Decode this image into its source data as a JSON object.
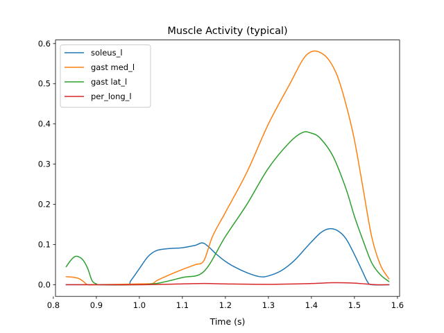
{
  "chart_data": {
    "type": "line",
    "title": "Muscle Activity (typical)",
    "xlabel": "Time (s)",
    "ylabel": "",
    "xlim": [
      0.805,
      1.605
    ],
    "ylim": [
      -0.029,
      0.609
    ],
    "xticks": [
      0.8,
      0.9,
      1.0,
      1.1,
      1.2,
      1.3,
      1.4,
      1.5,
      1.6
    ],
    "xtick_labels": [
      "0.8",
      "0.9",
      "1.0",
      "1.1",
      "1.2",
      "1.3",
      "1.4",
      "1.5",
      "1.6"
    ],
    "yticks": [
      0.0,
      0.1,
      0.2,
      0.3,
      0.4,
      0.5,
      0.6
    ],
    "ytick_labels": [
      "0.0",
      "0.1",
      "0.2",
      "0.3",
      "0.4",
      "0.5",
      "0.6"
    ],
    "grid": false,
    "legend_position": "upper-left",
    "series": [
      {
        "name": "soleus_l",
        "color": "#1f77b4",
        "x": [
          0.83,
          0.9,
          0.97,
          0.98,
          1.0,
          1.02,
          1.04,
          1.07,
          1.1,
          1.13,
          1.15,
          1.18,
          1.2,
          1.22,
          1.25,
          1.28,
          1.3,
          1.33,
          1.36,
          1.39,
          1.42,
          1.44,
          1.46,
          1.48,
          1.5,
          1.52,
          1.53,
          1.54,
          1.58
        ],
        "y": [
          0.0,
          0.0,
          0.0,
          0.01,
          0.04,
          0.07,
          0.085,
          0.09,
          0.092,
          0.098,
          0.103,
          0.075,
          0.058,
          0.045,
          0.03,
          0.02,
          0.022,
          0.035,
          0.06,
          0.095,
          0.128,
          0.139,
          0.135,
          0.115,
          0.075,
          0.03,
          0.008,
          0.0,
          0.0
        ]
      },
      {
        "name": "gast med_l",
        "color": "#ff7f0e",
        "x": [
          0.83,
          0.85,
          0.86,
          0.87,
          0.88,
          0.9,
          1.0,
          1.03,
          1.04,
          1.06,
          1.1,
          1.13,
          1.15,
          1.17,
          1.2,
          1.25,
          1.3,
          1.35,
          1.38,
          1.4,
          1.42,
          1.44,
          1.46,
          1.48,
          1.5,
          1.52,
          1.54,
          1.56,
          1.58
        ],
        "y": [
          0.02,
          0.018,
          0.015,
          0.008,
          0.0,
          0.0,
          0.002,
          0.003,
          0.01,
          0.02,
          0.038,
          0.05,
          0.06,
          0.12,
          0.18,
          0.28,
          0.4,
          0.5,
          0.56,
          0.58,
          0.578,
          0.56,
          0.52,
          0.45,
          0.36,
          0.24,
          0.12,
          0.05,
          0.015
        ]
      },
      {
        "name": "gast lat_l",
        "color": "#2ca02c",
        "x": [
          0.83,
          0.84,
          0.85,
          0.86,
          0.87,
          0.88,
          0.89,
          0.9,
          0.91,
          1.0,
          1.03,
          1.05,
          1.1,
          1.15,
          1.2,
          1.25,
          1.3,
          1.35,
          1.38,
          1.4,
          1.42,
          1.45,
          1.48,
          1.5,
          1.52,
          1.54,
          1.56,
          1.58
        ],
        "y": [
          0.045,
          0.06,
          0.07,
          0.069,
          0.06,
          0.04,
          0.01,
          0.002,
          0.0,
          0.0,
          0.002,
          0.005,
          0.018,
          0.033,
          0.12,
          0.2,
          0.29,
          0.355,
          0.379,
          0.377,
          0.365,
          0.32,
          0.24,
          0.17,
          0.11,
          0.055,
          0.025,
          0.008
        ]
      },
      {
        "name": "per_long_l",
        "color": "#d62728",
        "x": [
          0.83,
          0.9,
          1.0,
          1.1,
          1.15,
          1.2,
          1.3,
          1.4,
          1.45,
          1.5,
          1.55,
          1.58
        ],
        "y": [
          0.0,
          0.0,
          0.0,
          0.002,
          0.003,
          0.002,
          0.001,
          0.003,
          0.005,
          0.004,
          0.0,
          0.0
        ]
      }
    ]
  }
}
